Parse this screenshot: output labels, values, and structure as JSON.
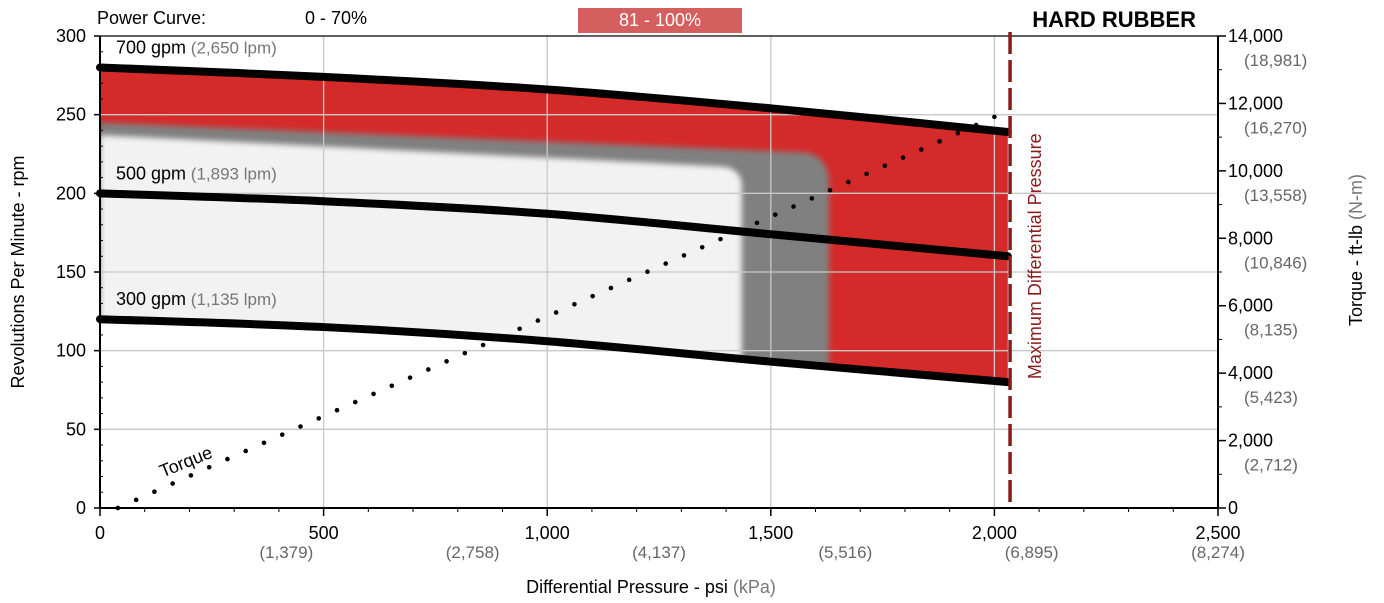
{
  "chart_data": {
    "type": "line",
    "title": "HARD RUBBER",
    "power_curve": {
      "label": "Power Curve:",
      "low_range": "0 - 70%",
      "high_range": "81 - 100%",
      "high_color": "#d55f5f"
    },
    "xlabel": {
      "main": "Differential Pressure - psi",
      "sub": "(kPa)"
    },
    "ylabel": "Revolutions Per Minute - rpm",
    "y2label": {
      "main": "Torque - ft-lb",
      "sub": "(N-m)"
    },
    "xlim": [
      0,
      2500
    ],
    "ylim": [
      0,
      300
    ],
    "x_ticks": [
      0,
      500,
      1000,
      1500,
      2000,
      2500
    ],
    "x_tick_labels": [
      "0",
      "500",
      "1,000",
      "1,500",
      "2,000",
      "2,500"
    ],
    "x_sub_ticks": [
      {
        "at": 500,
        "label": "(1,379)"
      },
      {
        "at": 1000,
        "label": "(2,758)"
      },
      {
        "at": 1500,
        "label": "(4,137)"
      },
      {
        "at": 2000,
        "label": "(5,516)"
      },
      {
        "at": 2500,
        "label": "(6,895)"
      },
      {
        "at": 3000,
        "label": "(8,274)"
      }
    ],
    "y_ticks": [
      0,
      50,
      100,
      150,
      200,
      250,
      300
    ],
    "y2_ticks": [
      {
        "value": 0,
        "label": "0",
        "sub": ""
      },
      {
        "value": 2000,
        "label": "2,000",
        "sub": "(2,712)"
      },
      {
        "value": 4000,
        "label": "4,000",
        "sub": "(5,423)"
      },
      {
        "value": 6000,
        "label": "6,000",
        "sub": "(8,135)"
      },
      {
        "value": 8000,
        "label": "8,000",
        "sub": "(10,846)"
      },
      {
        "value": 10000,
        "label": "10,000",
        "sub": "(13,558)"
      },
      {
        "value": 12000,
        "label": "12,000",
        "sub": "(16,270)"
      },
      {
        "value": 14000,
        "label": "14,000",
        "sub": "(18,981)"
      }
    ],
    "y2lim": [
      0,
      14000
    ],
    "grid": true,
    "colors": {
      "red_zone": "#d52a2a",
      "gray_zone": "#808080",
      "light_zone": "#f2f2f2",
      "max_line": "#8b1a1a",
      "curve": "#000000"
    },
    "series": [
      {
        "name": "700 gpm",
        "sub": "(2,650 lpm)",
        "x": [
          0,
          500,
          1000,
          1500,
          2030
        ],
        "y": [
          280,
          274,
          266,
          254,
          239
        ]
      },
      {
        "name": "500 gpm",
        "sub": "(1,893 lpm)",
        "x": [
          0,
          500,
          1000,
          1500,
          2030
        ],
        "y": [
          200,
          195,
          187,
          174,
          160
        ]
      },
      {
        "name": "300 gpm",
        "sub": "(1,135 lpm)",
        "x": [
          0,
          500,
          1000,
          1500,
          2030
        ],
        "y": [
          120,
          115,
          106,
          93,
          80
        ]
      }
    ],
    "torque": {
      "label": "Torque",
      "x": [
        40,
        2000
      ],
      "y": [
        0.5,
        11600
      ]
    },
    "max_differential_pressure": {
      "label": "Maximum Differential Pressure",
      "x": 2035
    }
  }
}
